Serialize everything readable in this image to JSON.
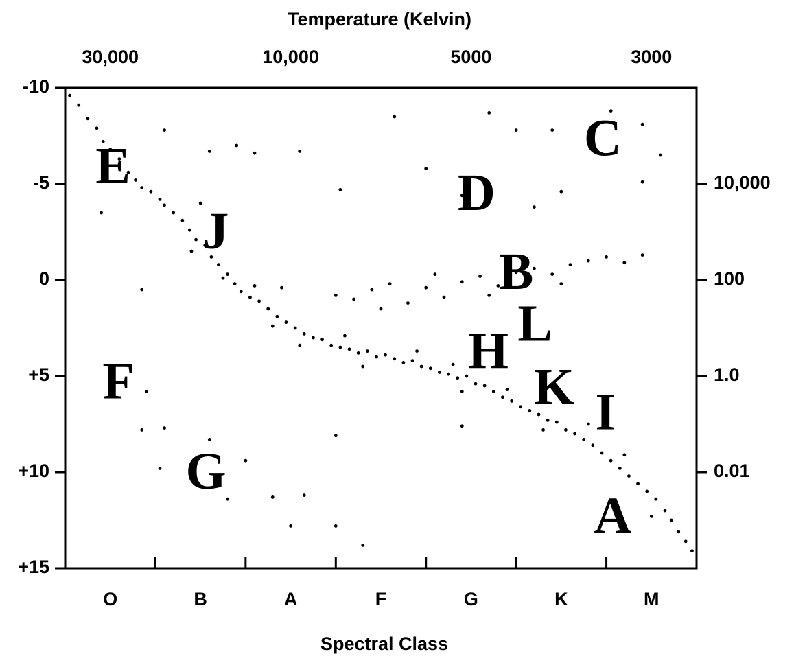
{
  "chart_data": {
    "type": "scatter",
    "title": "Temperature  (Kelvin)",
    "x_label": "Spectral Class",
    "categories": [
      "O",
      "B",
      "A",
      "F",
      "G",
      "K",
      "M"
    ],
    "x2categories": [
      "30,000",
      null,
      "10,000",
      null,
      "5000",
      null,
      "3000"
    ],
    "xlim": [
      0,
      7
    ],
    "ylim": [
      -10,
      15
    ],
    "y_inverted": true,
    "yticks": [
      -10,
      -5,
      0,
      {
        "value": 5,
        "label": "+5"
      },
      {
        "value": 10,
        "label": "+10"
      },
      {
        "value": 15,
        "label": "+15"
      }
    ],
    "y2lim": [
      1000000,
      0.0001
    ],
    "y2log": true,
    "y2ticks": [
      {
        "value": 10000,
        "label": "10,000"
      },
      100,
      {
        "value": 1,
        "label": "1.0"
      },
      0.01
    ],
    "color": "#000000",
    "annotations": [
      {
        "text": "E",
        "x": 0.53,
        "y": -5.8
      },
      {
        "text": "J",
        "x": 1.67,
        "y": -2.4
      },
      {
        "text": "D",
        "x": 4.56,
        "y": -4.4
      },
      {
        "text": "C",
        "x": 5.96,
        "y": -7.25
      },
      {
        "text": "B",
        "x": 5.0,
        "y": -0.3
      },
      {
        "text": "L",
        "x": 5.21,
        "y": 2.4
      },
      {
        "text": "H",
        "x": 4.69,
        "y": 3.8
      },
      {
        "text": "K",
        "x": 5.42,
        "y": 5.7
      },
      {
        "text": "I",
        "x": 5.99,
        "y": 7.0
      },
      {
        "text": "A",
        "x": 6.07,
        "y": 12.4
      },
      {
        "text": "F",
        "x": 0.59,
        "y": 5.4
      },
      {
        "text": "G",
        "x": 1.56,
        "y": 10.1
      }
    ],
    "x": [
      0.05,
      0.15,
      0.25,
      0.35,
      0.42,
      0.5,
      0.6,
      0.7,
      0.78,
      0.85,
      0.95,
      1.05,
      1.1,
      1.2,
      1.3,
      1.38,
      1.45,
      1.55,
      1.62,
      1.7,
      1.8,
      1.88,
      1.95,
      2.05,
      2.15,
      2.25,
      2.35,
      2.45,
      2.55,
      2.65,
      2.75,
      2.85,
      2.95,
      3.05,
      3.15,
      3.25,
      3.35,
      3.45,
      3.55,
      3.65,
      3.75,
      3.85,
      3.95,
      4.05,
      4.15,
      4.25,
      4.35,
      4.45,
      4.55,
      4.65,
      4.75,
      4.85,
      4.95,
      5.05,
      5.15,
      5.25,
      5.35,
      5.45,
      5.55,
      5.65,
      5.75,
      5.85,
      5.95,
      6.05,
      6.15,
      6.25,
      6.35,
      6.45,
      6.55,
      6.65,
      6.72,
      6.8,
      6.88,
      6.95,
      1.4,
      2.1,
      2.6,
      3.3,
      3.9,
      4.4,
      4.9,
      5.3,
      5.8,
      6.2,
      6.5,
      4.3,
      3.1,
      2.3,
      1.75,
      3.2,
      3.4,
      3.6,
      3.8,
      4.0,
      4.2,
      4.4,
      4.6,
      4.8,
      5.0,
      5.2,
      5.4,
      5.6,
      5.8,
      6.0,
      6.2,
      6.4,
      4.1,
      4.7,
      5.5,
      3.0,
      3.5,
      1.1,
      1.6,
      1.9,
      2.1,
      2.6,
      3.65,
      4.7,
      5.0,
      5.4,
      6.05,
      6.4,
      6.6,
      6.4,
      4.0,
      4.4,
      5.2,
      5.5,
      3.05,
      0.4,
      0.85,
      1.5,
      2.4,
      0.9,
      0.85,
      1.1,
      1.05,
      1.6,
      2.0,
      1.8,
      2.3,
      2.5,
      2.65,
      3.0,
      3.3,
      3.0,
      4.4
    ],
    "y": [
      -9.6,
      -9.1,
      -8.4,
      -7.9,
      -7.2,
      -6.8,
      -6.3,
      -5.6,
      -5.2,
      -4.8,
      -4.6,
      -4.2,
      -3.9,
      -3.5,
      -3.1,
      -2.6,
      -2.1,
      -1.8,
      -1.2,
      -0.8,
      -0.3,
      0.2,
      0.6,
      0.9,
      1.1,
      1.5,
      1.9,
      2.2,
      2.5,
      2.8,
      3.0,
      3.1,
      3.4,
      3.5,
      3.6,
      3.8,
      3.7,
      4.0,
      3.9,
      4.1,
      4.3,
      4.2,
      4.5,
      4.6,
      4.8,
      4.9,
      5.1,
      5.0,
      5.4,
      5.5,
      5.8,
      6.1,
      6.3,
      6.6,
      6.8,
      7.0,
      7.3,
      7.4,
      7.8,
      8.0,
      8.3,
      8.6,
      9.0,
      9.4,
      9.8,
      10.2,
      10.6,
      11.0,
      11.4,
      12.0,
      12.5,
      13.1,
      13.6,
      14.1,
      -1.5,
      0.3,
      3.4,
      4.5,
      3.7,
      5.8,
      5.7,
      7.8,
      7.5,
      9.1,
      12.3,
      4.4,
      2.9,
      2.4,
      -0.1,
      1.0,
      0.5,
      0.2,
      1.2,
      0.4,
      0.9,
      0.1,
      -0.2,
      0.3,
      -0.4,
      -0.6,
      -0.3,
      -0.8,
      -1.0,
      -1.2,
      -0.9,
      -1.3,
      -0.3,
      0.8,
      0.2,
      0.8,
      1.5,
      -7.8,
      -6.7,
      -7.0,
      -6.6,
      -6.7,
      -8.5,
      -8.7,
      -7.8,
      -7.8,
      -8.8,
      -8.1,
      -6.5,
      -5.1,
      -5.8,
      -4.4,
      -3.8,
      -4.6,
      -4.7,
      -3.5,
      0.5,
      -4.0,
      0.4,
      5.8,
      7.8,
      7.7,
      9.8,
      8.3,
      9.4,
      11.4,
      11.3,
      12.8,
      11.2,
      12.8,
      13.8,
      8.1,
      7.6
    ]
  }
}
